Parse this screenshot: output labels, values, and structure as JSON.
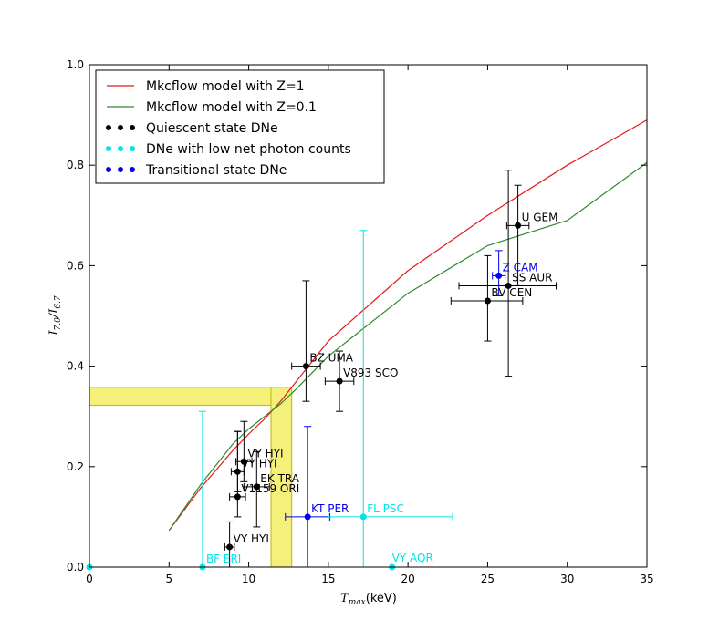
{
  "chart_data": {
    "type": "scatter",
    "xlabel_sym": "T",
    "xlabel_sub": "max",
    "xlabel_unit": "(keV)",
    "ylabel_sym": "I",
    "ylabel_sub_num": "7.0",
    "ylabel_sub_den": "6.7",
    "xlim": [
      0,
      35
    ],
    "ylim": [
      0,
      1.0
    ],
    "xticks": [
      0,
      5,
      10,
      15,
      20,
      25,
      30,
      35
    ],
    "yticks": [
      0.0,
      0.2,
      0.4,
      0.6,
      0.8,
      1.0
    ],
    "xtick_labels": [
      "0",
      "5",
      "10",
      "15",
      "20",
      "25",
      "30",
      "35"
    ],
    "ytick_labels": [
      "0.0",
      "0.2",
      "0.4",
      "0.6",
      "0.8",
      "1.0"
    ],
    "legend_position": "top-left",
    "legend": [
      {
        "label": "Mkcflow model with Z=1",
        "kind": "line",
        "color": "#e41a1c"
      },
      {
        "label": "Mkcflow model with Z=0.1",
        "kind": "line",
        "color": "#2e8b2e"
      },
      {
        "label": "Quiescent state DNe",
        "kind": "points",
        "color": "#000000"
      },
      {
        "label": "DNe with low net photon counts",
        "kind": "points",
        "color": "#00e5e5"
      },
      {
        "label": "Transitional state DNe",
        "kind": "points",
        "color": "#0000ee"
      }
    ],
    "models": [
      {
        "name": "Mkcflow model with Z=1",
        "color": "#e41a1c",
        "x": [
          5,
          7,
          9,
          10,
          11,
          12,
          13,
          15,
          20,
          25,
          30,
          35
        ],
        "y": [
          0.073,
          0.158,
          0.232,
          0.265,
          0.295,
          0.33,
          0.37,
          0.45,
          0.59,
          0.7,
          0.8,
          0.89
        ]
      },
      {
        "name": "Mkcflow model with Z=0.1",
        "color": "#2e8b2e",
        "x": [
          5,
          7,
          9,
          10,
          11,
          12,
          13,
          15,
          20,
          25,
          30,
          35
        ],
        "y": [
          0.073,
          0.165,
          0.245,
          0.275,
          0.3,
          0.325,
          0.355,
          0.42,
          0.545,
          0.64,
          0.69,
          0.805
        ]
      }
    ],
    "bands": {
      "horizontal": {
        "y_range": [
          0.322,
          0.358
        ],
        "x_range": [
          0,
          12.5
        ],
        "color": "#f5f07a"
      },
      "vertical": {
        "x_range": [
          11.4,
          12.7
        ],
        "y_range": [
          0,
          0.358
        ],
        "color": "#f5f07a"
      }
    },
    "points": [
      {
        "label": "U GEM",
        "x": 26.9,
        "y": 0.68,
        "xerr": [
          0.7,
          0.7
        ],
        "yerr": [
          0.12,
          0.08
        ],
        "color": "#000000",
        "label_dx": 4,
        "label_dy": -5
      },
      {
        "label": "SS AUR",
        "x": 26.3,
        "y": 0.56,
        "xerr": [
          3.1,
          3.0
        ],
        "yerr": [
          0.18,
          0.23
        ],
        "color": "#000000",
        "label_dx": 4,
        "label_dy": -5
      },
      {
        "label": "BV CEN",
        "x": 25.0,
        "y": 0.53,
        "xerr": [
          2.3,
          2.2
        ],
        "yerr": [
          0.08,
          0.09
        ],
        "color": "#000000",
        "label_dx": 4,
        "label_dy": -5
      },
      {
        "label": "Z CAM",
        "x": 25.7,
        "y": 0.58,
        "xerr": [
          0.4,
          0.4
        ],
        "yerr": [
          0.04,
          0.05
        ],
        "color": "#0000ee",
        "label_dx": 4,
        "label_dy": -5
      },
      {
        "label": "BZ UMA",
        "x": 13.6,
        "y": 0.4,
        "xerr": [
          0.9,
          0.9
        ],
        "yerr": [
          0.07,
          0.17
        ],
        "color": "#000000",
        "label_dx": 4,
        "label_dy": -5
      },
      {
        "label": "V893 SCO",
        "x": 15.7,
        "y": 0.37,
        "xerr": [
          0.9,
          0.9
        ],
        "yerr": [
          0.06,
          0.06
        ],
        "color": "#000000",
        "label_dx": 4,
        "label_dy": -5
      },
      {
        "label": "VY HYI",
        "x": 9.7,
        "y": 0.21,
        "xerr": [
          0.5,
          0.5
        ],
        "yerr": [
          0.04,
          0.08
        ],
        "color": "#000000",
        "label_dx": 4,
        "label_dy": -5
      },
      {
        "label": "VY HYI",
        "x": 9.3,
        "y": 0.19,
        "xerr": [
          0.4,
          0.4
        ],
        "yerr": [
          0.04,
          0.08
        ],
        "color": "#000000",
        "label_dx": 4,
        "label_dy": -5
      },
      {
        "label": "EK TRA",
        "x": 10.5,
        "y": 0.16,
        "xerr": [
          0.8,
          0.8
        ],
        "yerr": [
          0.08,
          0.07
        ],
        "color": "#000000",
        "label_dx": 4,
        "label_dy": -5
      },
      {
        "label": "V1159 ORI",
        "x": 9.3,
        "y": 0.14,
        "xerr": [
          0.5,
          0.5
        ],
        "yerr": [
          0.04,
          0.13
        ],
        "color": "#000000",
        "label_dx": 4,
        "label_dy": -5
      },
      {
        "label": "VY HYI",
        "x": 8.8,
        "y": 0.04,
        "xerr": [
          0.3,
          0.3
        ],
        "yerr": [
          0.04,
          0.05
        ],
        "color": "#000000",
        "label_dx": 4,
        "label_dy": -5
      },
      {
        "label": "KT PER",
        "x": 13.7,
        "y": 0.1,
        "xerr": [
          1.4,
          1.4
        ],
        "yerr": [
          0.1,
          0.18
        ],
        "color": "#0000ee",
        "label_dx": 4,
        "label_dy": -5
      },
      {
        "label": "FL PSC",
        "x": 17.2,
        "y": 0.1,
        "xerr": [
          2.2,
          5.6
        ],
        "yerr": [
          0.1,
          0.57
        ],
        "color": "#00e5e5",
        "label_dx": 4,
        "label_dy": -5
      },
      {
        "label": "BF ERI",
        "x": 7.1,
        "y": 0.0,
        "xerr": [
          0,
          0
        ],
        "yerr": [
          0,
          0.31
        ],
        "color": "#00e5e5",
        "label_dx": 4,
        "label_dy": -5
      },
      {
        "label": "VY AQR",
        "x": 19.0,
        "y": 0.0,
        "xerr": [
          0,
          0
        ],
        "yerr": [
          0,
          0
        ],
        "color": "#00e5e5",
        "label_dx": 0,
        "label_dy": -6
      },
      {
        "label": "",
        "x": 0.0,
        "y": 0.0,
        "xerr": [
          0,
          0
        ],
        "yerr": [
          0,
          0
        ],
        "color": "#00e5e5",
        "label_dx": 0,
        "label_dy": 0
      }
    ]
  }
}
